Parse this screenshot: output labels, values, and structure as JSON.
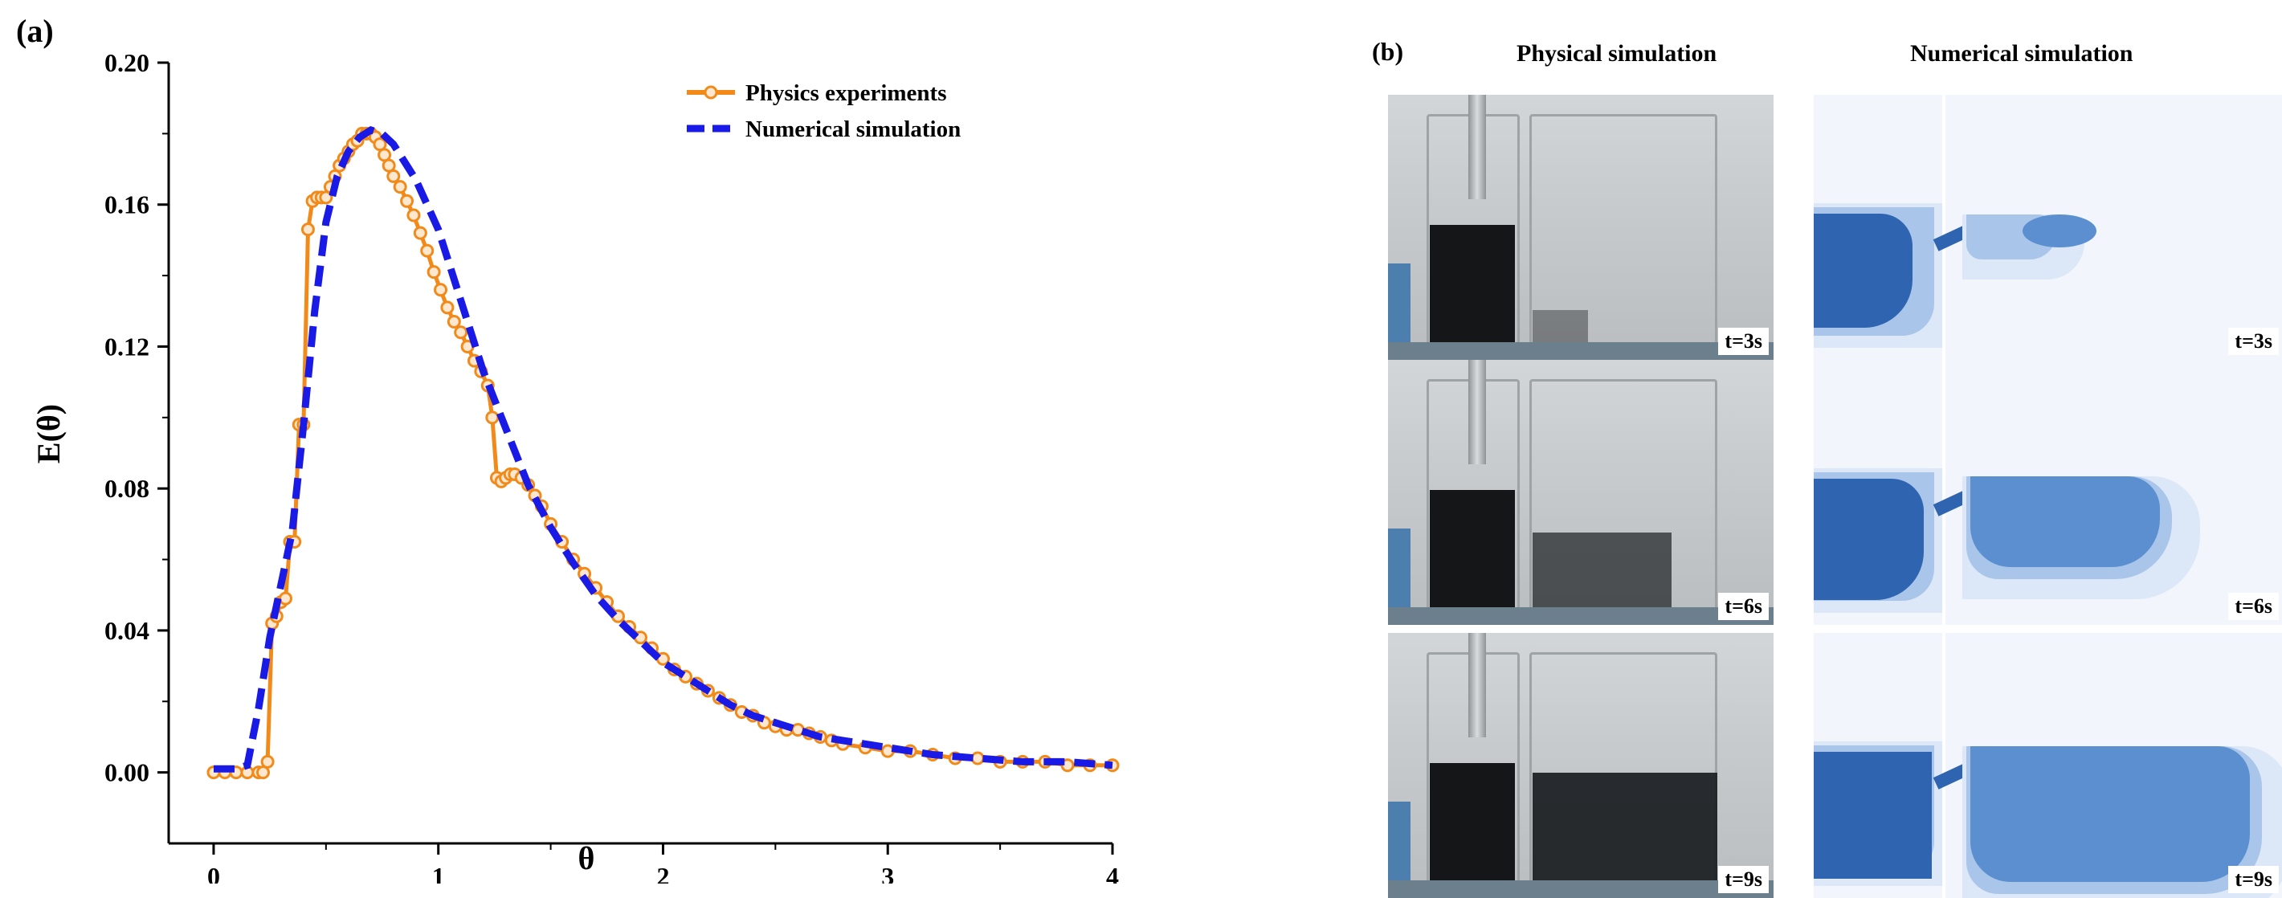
{
  "panel_a": {
    "label": "(a)",
    "chart_data": {
      "type": "line",
      "title": "",
      "xlabel": "θ",
      "ylabel": "E(θ)",
      "xlim": [
        -0.2,
        4.0
      ],
      "ylim": [
        -0.02,
        0.2
      ],
      "xticks": [
        "0",
        "1",
        "2",
        "3",
        "4"
      ],
      "yticks": [
        "0.00",
        "0.04",
        "0.08",
        "0.12",
        "0.16",
        "0.20"
      ],
      "legend_position": "top-right",
      "series": [
        {
          "name": "Physics experiments",
          "color": "#F28A1A",
          "style": "solid-circle-markers",
          "x": [
            0.0,
            0.05,
            0.1,
            0.15,
            0.2,
            0.22,
            0.24,
            0.26,
            0.28,
            0.3,
            0.32,
            0.34,
            0.36,
            0.38,
            0.4,
            0.42,
            0.44,
            0.46,
            0.48,
            0.5,
            0.52,
            0.54,
            0.56,
            0.58,
            0.6,
            0.62,
            0.64,
            0.66,
            0.68,
            0.7,
            0.72,
            0.74,
            0.76,
            0.78,
            0.8,
            0.83,
            0.86,
            0.89,
            0.92,
            0.95,
            0.98,
            1.01,
            1.04,
            1.07,
            1.1,
            1.13,
            1.16,
            1.19,
            1.22,
            1.24,
            1.26,
            1.28,
            1.3,
            1.32,
            1.34,
            1.37,
            1.4,
            1.43,
            1.46,
            1.5,
            1.55,
            1.6,
            1.65,
            1.7,
            1.75,
            1.8,
            1.85,
            1.9,
            1.95,
            2.0,
            2.05,
            2.1,
            2.15,
            2.2,
            2.25,
            2.3,
            2.35,
            2.4,
            2.45,
            2.5,
            2.55,
            2.6,
            2.65,
            2.7,
            2.75,
            2.8,
            2.9,
            3.0,
            3.1,
            3.2,
            3.3,
            3.4,
            3.5,
            3.6,
            3.7,
            3.8,
            3.9,
            4.0
          ],
          "y": [
            0.0,
            0.0,
            0.0,
            0.0,
            0.0,
            0.0,
            0.003,
            0.042,
            0.044,
            0.048,
            0.049,
            0.065,
            0.065,
            0.098,
            0.098,
            0.153,
            0.161,
            0.162,
            0.162,
            0.162,
            0.165,
            0.168,
            0.171,
            0.173,
            0.175,
            0.177,
            0.178,
            0.18,
            0.18,
            0.18,
            0.179,
            0.177,
            0.174,
            0.171,
            0.168,
            0.165,
            0.161,
            0.157,
            0.152,
            0.147,
            0.141,
            0.136,
            0.131,
            0.127,
            0.124,
            0.12,
            0.116,
            0.113,
            0.109,
            0.1,
            0.083,
            0.082,
            0.083,
            0.084,
            0.084,
            0.083,
            0.081,
            0.078,
            0.075,
            0.07,
            0.065,
            0.06,
            0.056,
            0.052,
            0.048,
            0.044,
            0.041,
            0.038,
            0.035,
            0.032,
            0.029,
            0.027,
            0.025,
            0.023,
            0.021,
            0.019,
            0.017,
            0.016,
            0.014,
            0.013,
            0.012,
            0.012,
            0.011,
            0.01,
            0.009,
            0.008,
            0.007,
            0.006,
            0.006,
            0.005,
            0.004,
            0.004,
            0.003,
            0.003,
            0.003,
            0.002,
            0.002,
            0.002
          ]
        },
        {
          "name": "Numerical simulation",
          "color": "#1A1AE6",
          "style": "dashed",
          "x": [
            0.0,
            0.1,
            0.15,
            0.2,
            0.25,
            0.3,
            0.35,
            0.4,
            0.45,
            0.5,
            0.55,
            0.6,
            0.65,
            0.7,
            0.75,
            0.8,
            0.85,
            0.9,
            0.95,
            1.0,
            1.1,
            1.2,
            1.3,
            1.4,
            1.5,
            1.6,
            1.7,
            1.8,
            1.9,
            2.0,
            2.1,
            2.2,
            2.3,
            2.4,
            2.5,
            2.6,
            2.7,
            2.8,
            2.9,
            3.0,
            3.2,
            3.4,
            3.6,
            3.8,
            4.0
          ],
          "y": [
            0.001,
            0.001,
            0.002,
            0.018,
            0.038,
            0.053,
            0.068,
            0.098,
            0.13,
            0.155,
            0.168,
            0.175,
            0.179,
            0.181,
            0.18,
            0.177,
            0.172,
            0.167,
            0.16,
            0.153,
            0.133,
            0.113,
            0.097,
            0.081,
            0.069,
            0.059,
            0.05,
            0.043,
            0.037,
            0.031,
            0.027,
            0.023,
            0.019,
            0.016,
            0.014,
            0.012,
            0.01,
            0.009,
            0.008,
            0.007,
            0.005,
            0.004,
            0.003,
            0.003,
            0.002
          ]
        }
      ]
    }
  },
  "panel_b": {
    "label": "(b)",
    "col_physical": "Physical simulation",
    "col_numerical": "Numerical simulation",
    "rows": [
      {
        "time": "t=3s",
        "fill": 0.1
      },
      {
        "time": "t=6s",
        "fill": 0.55
      },
      {
        "time": "t=9s",
        "fill": 0.9
      }
    ],
    "colors": {
      "dark": "#2E64B0",
      "mid": "#5C8FD0",
      "light": "#A9C6EA",
      "pale": "#DCE8F7"
    }
  }
}
